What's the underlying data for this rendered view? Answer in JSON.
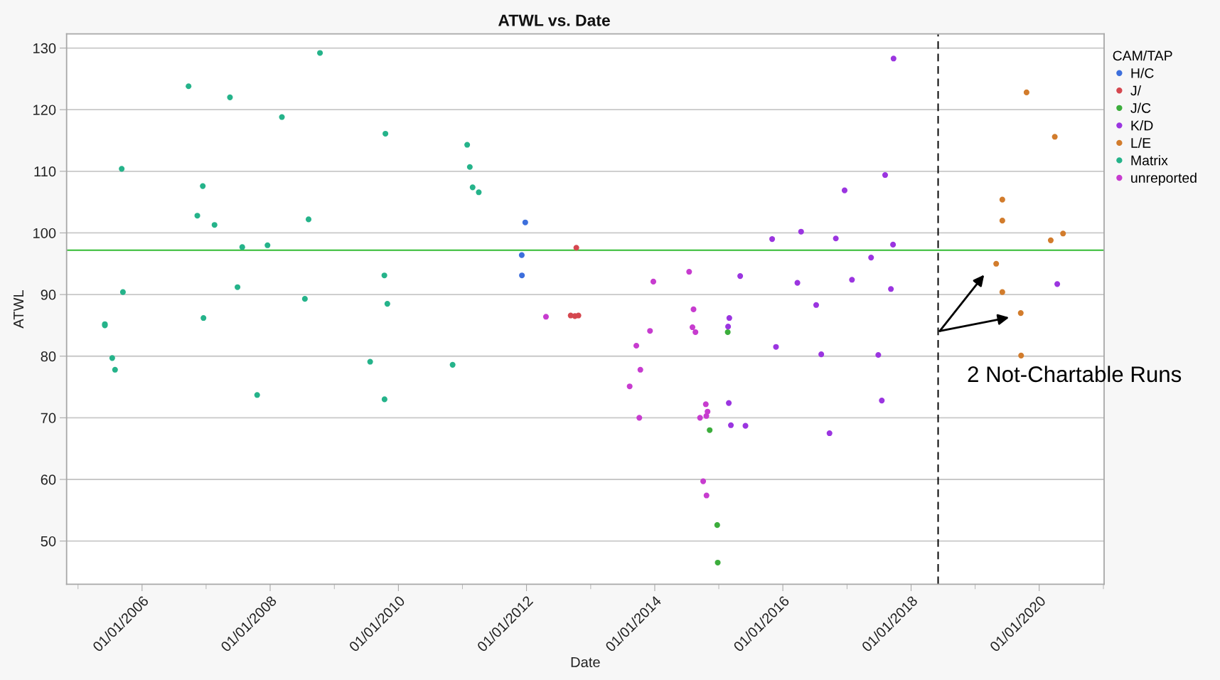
{
  "chart_data": {
    "type": "scatter",
    "title": "ATWL vs. Date",
    "xlabel": "Date",
    "ylabel": "ATWL",
    "legend_title": "CAM/TAP",
    "legend": "top right",
    "grid": "y",
    "marker": "circle",
    "xlim": [
      "2004-10-28",
      "2021-01-05"
    ],
    "xticks": [
      {
        "value": "2005-01-01",
        "label": null
      },
      {
        "value": "2006-01-01",
        "label": "01/01/2006"
      },
      {
        "value": "2007-01-01",
        "label": null
      },
      {
        "value": "2008-01-01",
        "label": "01/01/2008"
      },
      {
        "value": "2009-01-01",
        "label": null
      },
      {
        "value": "2010-01-01",
        "label": "01/01/2010"
      },
      {
        "value": "2011-01-01",
        "label": null
      },
      {
        "value": "2012-01-01",
        "label": "01/01/2012"
      },
      {
        "value": "2013-01-01",
        "label": null
      },
      {
        "value": "2014-01-01",
        "label": "01/01/2014"
      },
      {
        "value": "2015-01-01",
        "label": null
      },
      {
        "value": "2016-01-01",
        "label": "01/01/2016"
      },
      {
        "value": "2017-01-01",
        "label": null
      },
      {
        "value": "2018-01-01",
        "label": "01/01/2018"
      },
      {
        "value": "2019-01-01",
        "label": null
      },
      {
        "value": "2020-01-01",
        "label": "01/01/2020"
      },
      {
        "value": "2021-01-01",
        "label": null
      }
    ],
    "ylim": [
      43,
      132.3
    ],
    "yticks": [
      50,
      60,
      70,
      80,
      90,
      100,
      110,
      120,
      130
    ],
    "ref_lines": [
      {
        "axis": "y",
        "value": 97.2,
        "color": "#33bb33",
        "line_style": "solid"
      },
      {
        "axis": "x",
        "value": "2018-06-04",
        "color": "#000000",
        "line_style": "dashed"
      }
    ],
    "annotations": [
      "2 Not-Chartable Runs"
    ],
    "series": [
      {
        "name": "H/C",
        "color": "#3d6fdc",
        "x": [
          "2011-12-05",
          "2011-12-06",
          "2011-12-25"
        ],
        "values": [
          96.4,
          93.1,
          101.7
        ]
      },
      {
        "name": "J/",
        "color": "#d5474f",
        "x": [
          "2012-09-09",
          "2012-10-03",
          "2012-10-11",
          "2012-10-23"
        ],
        "values": [
          86.6,
          86.5,
          97.6,
          86.6
        ]
      },
      {
        "name": "J/C",
        "color": "#3cad3c",
        "x": [
          "2014-11-10",
          "2014-12-23",
          "2014-12-26",
          "2015-02-21"
        ],
        "values": [
          68.0,
          52.6,
          46.5,
          83.9
        ]
      },
      {
        "name": "K/D",
        "color": "#9b35e0",
        "x": [
          "2015-02-23",
          "2015-02-27",
          "2015-03-02",
          "2015-03-11",
          "2015-05-03",
          "2015-06-02",
          "2015-11-01",
          "2015-11-23",
          "2016-03-24",
          "2016-04-14",
          "2016-07-09",
          "2016-08-07",
          "2016-09-23",
          "2016-10-29",
          "2016-12-18",
          "2017-01-29",
          "2017-05-18",
          "2017-06-28",
          "2017-07-18",
          "2017-08-06",
          "2017-09-08",
          "2017-09-20",
          "2017-09-23",
          "2020-04-13"
        ],
        "values": [
          84.8,
          72.4,
          86.2,
          68.8,
          93.0,
          68.7,
          99.0,
          81.5,
          91.9,
          100.2,
          88.3,
          80.3,
          67.5,
          99.1,
          106.9,
          92.4,
          96.0,
          80.2,
          72.8,
          109.4,
          90.9,
          98.1,
          128.3,
          91.7
        ]
      },
      {
        "name": "L/E",
        "color": "#d27c2c",
        "x": [
          "2019-05-01",
          "2019-06-05",
          "2019-06-05",
          "2019-06-05",
          "2019-09-18",
          "2019-09-20",
          "2019-10-21",
          "2020-03-07",
          "2020-03-30",
          "2020-05-16"
        ],
        "values": [
          95.0,
          105.4,
          102.0,
          90.4,
          87.0,
          80.1,
          122.8,
          98.8,
          115.6,
          99.9
        ]
      },
      {
        "name": "Matrix",
        "color": "#25b38a",
        "x": [
          "2005-06-03",
          "2005-06-03",
          "2005-07-15",
          "2005-07-31",
          "2005-09-07",
          "2005-09-14",
          "2006-09-23",
          "2006-11-12",
          "2006-12-13",
          "2006-12-17",
          "2007-02-18",
          "2007-05-17",
          "2007-06-29",
          "2007-07-26",
          "2007-10-19",
          "2007-12-17",
          "2008-03-08",
          "2008-07-17",
          "2008-08-07",
          "2008-10-11",
          "2009-07-24",
          "2009-10-13",
          "2009-10-14",
          "2009-10-19",
          "2009-10-30",
          "2010-11-06",
          "2011-01-28",
          "2011-02-12",
          "2011-02-28",
          "2011-04-04"
        ],
        "values": [
          85.2,
          85.0,
          79.7,
          77.8,
          110.4,
          90.4,
          123.8,
          102.8,
          107.6,
          86.2,
          101.3,
          122.0,
          91.2,
          97.7,
          73.7,
          98.0,
          118.8,
          89.3,
          102.2,
          129.2,
          79.1,
          93.1,
          73.0,
          116.1,
          88.5,
          78.6,
          114.3,
          110.7,
          107.4,
          106.6
        ]
      },
      {
        "name": "unreported",
        "color": "#c73ccf",
        "x": [
          "2012-04-21",
          "2013-08-11",
          "2013-09-18",
          "2013-10-05",
          "2013-10-11",
          "2013-12-05",
          "2013-12-24",
          "2014-07-16",
          "2014-08-04",
          "2014-08-10",
          "2014-08-21",
          "2014-09-16",
          "2014-10-04",
          "2014-10-19",
          "2014-10-22",
          "2014-10-23",
          "2014-10-29"
        ],
        "values": [
          86.4,
          75.1,
          81.7,
          70.0,
          77.8,
          84.1,
          92.1,
          93.7,
          84.7,
          87.6,
          83.9,
          70.0,
          59.7,
          72.2,
          70.3,
          57.4,
          71.0
        ]
      }
    ]
  }
}
